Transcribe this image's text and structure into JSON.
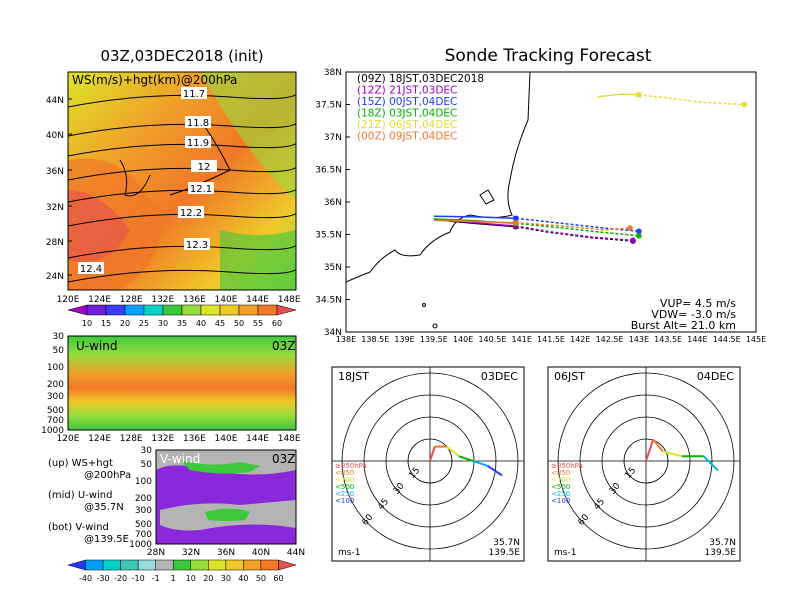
{
  "left_panel": {
    "title": "03Z,03DEC2018 (init)",
    "map_label": "WS(m/s)+hgt(km)@200hPa",
    "x_ticks": [
      "120E",
      "124E",
      "128E",
      "132E",
      "136E",
      "140E",
      "144E",
      "148E"
    ],
    "y_ticks": [
      "24N",
      "28N",
      "32N",
      "36N",
      "40N",
      "44N"
    ],
    "contour_labels": [
      "11.7",
      "11.8",
      "11.9",
      "12",
      "12.1",
      "12.2",
      "12.3",
      "12.4"
    ],
    "colorbar_labels": [
      "10",
      "15",
      "20",
      "25",
      "30",
      "35",
      "40",
      "45",
      "50",
      "55",
      "60"
    ],
    "colorbar_colors": [
      "#a000c8",
      "#6e1ed6",
      "#3c3cff",
      "#00a0ff",
      "#00d2c8",
      "#3cc83c",
      "#96dc3c",
      "#dce628",
      "#f0c828",
      "#f0a028",
      "#f07828",
      "#e65050"
    ]
  },
  "uwind_panel": {
    "label": "U-wind",
    "time": "03Z",
    "y_ticks": [
      "30",
      "50",
      "100",
      "200",
      "300",
      "500",
      "700",
      "1000"
    ],
    "x_ticks": [
      "120E",
      "124E",
      "128E",
      "132E",
      "136E",
      "140E",
      "144E",
      "148E"
    ]
  },
  "vwind_panel": {
    "label": "V-wind",
    "time": "03Z",
    "y_ticks": [
      "30",
      "50",
      "100",
      "200",
      "300",
      "500",
      "700",
      "1000"
    ],
    "x_ticks": [
      "28N",
      "32N",
      "36N",
      "40N",
      "44N"
    ]
  },
  "legend_text": {
    "up1": "(up) WS+hgt",
    "up2": "@200hPa",
    "mid1": "(mid) U-wind",
    "mid2": "@35.7N",
    "bot1": "(bot) V-wind",
    "bot2": "@139.5E"
  },
  "bottom_colorbar": {
    "labels": [
      "-40",
      "-30",
      "-20",
      "-10",
      "-1",
      "1",
      "10",
      "20",
      "30",
      "40",
      "50",
      "60"
    ],
    "colors": [
      "#1e3cff",
      "#00a0ff",
      "#00d2c8",
      "#3cc8b4",
      "#96dcdc",
      "#b4b4b4",
      "#3cc83c",
      "#96dc3c",
      "#dce628",
      "#f0c828",
      "#f0a028",
      "#f07828",
      "#e65050"
    ]
  },
  "track_panel": {
    "title": "Sonde Tracking Forecast",
    "legend": [
      {
        "text": "(09Z) 18JST,03DEC2018",
        "color": "#000000"
      },
      {
        "text": "(12Z) 21JST,03DEC",
        "color": "#a000c8"
      },
      {
        "text": "(15Z) 00JST,04DEC",
        "color": "#1e3cff"
      },
      {
        "text": "(18Z) 03JST,04DEC",
        "color": "#00b400"
      },
      {
        "text": "(21Z) 06JST,04DEC",
        "color": "#e6dc32"
      },
      {
        "text": "(00Z) 09JST,04DEC",
        "color": "#f07828"
      }
    ],
    "x_ticks": [
      "138E",
      "138.5E",
      "139E",
      "139.5E",
      "140E",
      "140.5E",
      "141E",
      "141.5E",
      "142E",
      "142.5E",
      "143E",
      "143.5E",
      "144E",
      "144.5E",
      "145E"
    ],
    "y_ticks": [
      "38N",
      "37.5N",
      "37N",
      "36.5N",
      "36N",
      "35.5N",
      "35N",
      "34.5N",
      "34N"
    ],
    "xlim": [
      138,
      145
    ],
    "ylim": [
      34,
      38
    ],
    "info": {
      "vup": "VUP= 4.5 m/s",
      "vdw": "VDW= -3.0 m/s",
      "burst": "Burst Alt= 21.0 km"
    }
  },
  "chart_data": [
    {
      "type": "line",
      "title": "Sonde Tracking Forecast",
      "xlim": [
        138,
        145
      ],
      "ylim": [
        34,
        38
      ],
      "series": [
        {
          "name": "(09Z) 18JST,03DEC2018",
          "x": [
            139.5,
            140.2,
            140.9,
            141.5,
            142.2,
            142.9
          ],
          "y": [
            35.73,
            35.67,
            35.62,
            35.53,
            35.45,
            35.4
          ]
        },
        {
          "name": "(12Z) 21JST,03DEC",
          "x": [
            139.5,
            140.2,
            140.9,
            141.5,
            142.2,
            142.9
          ],
          "y": [
            35.74,
            35.68,
            35.63,
            35.54,
            35.46,
            35.41
          ]
        },
        {
          "name": "(15Z) 00JST,04DEC",
          "x": [
            139.5,
            140.2,
            140.9,
            141.7,
            142.4,
            143.0
          ],
          "y": [
            35.78,
            35.77,
            35.75,
            35.67,
            35.6,
            35.55
          ]
        },
        {
          "name": "(18Z) 03JST,04DEC",
          "x": [
            139.5,
            140.2,
            140.9,
            141.7,
            142.4,
            143.0
          ],
          "y": [
            35.74,
            35.71,
            35.67,
            35.6,
            35.53,
            35.48
          ]
        },
        {
          "name": "(21Z) 06JST,04DEC",
          "x": [
            142.3,
            142.7,
            143.0,
            143.5,
            144.1,
            144.8
          ],
          "y": [
            37.62,
            37.66,
            37.65,
            37.6,
            37.53,
            37.5
          ]
        },
        {
          "name": "(00Z) 09JST,04DEC",
          "x": [
            139.5,
            140.2,
            140.9,
            141.7,
            142.4,
            142.85
          ],
          "y": [
            35.72,
            35.7,
            35.68,
            35.63,
            35.57,
            35.6
          ]
        }
      ]
    },
    {
      "type": "line",
      "title": "18JST 03DEC",
      "series": [
        {
          "name": "18JST",
          "x": [
            0.0,
            0.02,
            0.07,
            0.12,
            0.18,
            0.24,
            0.3
          ],
          "y": [
            0.0,
            0.06,
            0.06,
            0.02,
            0.0,
            -0.02,
            -0.06
          ]
        }
      ]
    },
    {
      "type": "line",
      "title": "06JST 04DEC",
      "series": [
        {
          "name": "06JST",
          "x": [
            0.0,
            0.03,
            0.07,
            0.15,
            0.24,
            0.3
          ],
          "y": [
            0.0,
            0.09,
            0.04,
            0.02,
            0.02,
            -0.04
          ]
        }
      ]
    }
  ],
  "polar_left": {
    "time": "18JST",
    "date": "03DEC",
    "ring_labels": [
      "15",
      "30",
      "45",
      "60"
    ],
    "unit": "ms-1",
    "lat": "35.7N",
    "lon": "139.5E",
    "levels": [
      {
        "t": "≥850hPa",
        "c": "#e65050"
      },
      {
        "t": "<850",
        "c": "#f07828"
      },
      {
        "t": "<700",
        "c": "#dce628"
      },
      {
        "t": "<500",
        "c": "#00b400"
      },
      {
        "t": "<250",
        "c": "#00b4dc"
      },
      {
        "t": "<100",
        "c": "#1e3cff"
      }
    ]
  },
  "polar_right": {
    "time": "06JST",
    "date": "04DEC",
    "ring_labels": [
      "15",
      "30",
      "45",
      "60"
    ],
    "unit": "ms-1",
    "lat": "35.7N",
    "lon": "139.5E",
    "levels": [
      {
        "t": "≥850hPa",
        "c": "#e65050"
      },
      {
        "t": "<850",
        "c": "#f07828"
      },
      {
        "t": "<700",
        "c": "#dce628"
      },
      {
        "t": "<500",
        "c": "#00b400"
      },
      {
        "t": "<250",
        "c": "#00b4dc"
      },
      {
        "t": "<100",
        "c": "#1e3cff"
      }
    ]
  }
}
